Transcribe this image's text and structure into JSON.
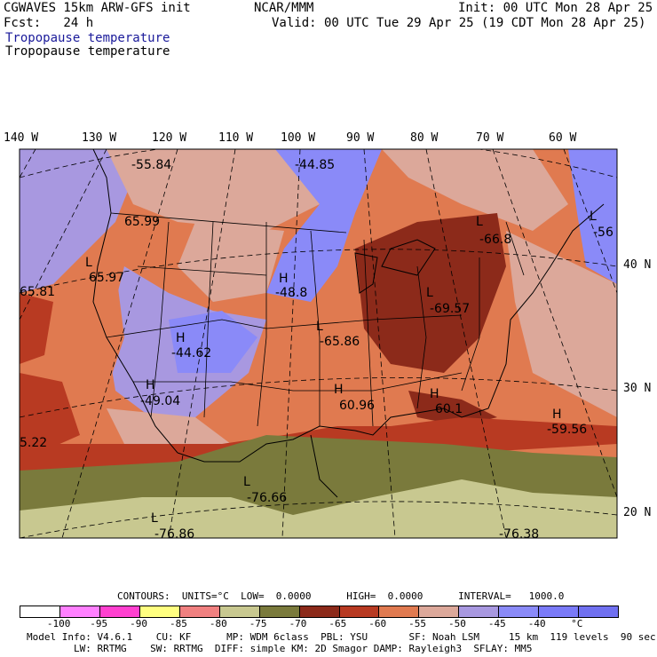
{
  "header": {
    "model": "CGWAVES 15km ARW-GFS init",
    "org": "NCAR/MMM",
    "init": "Init: 00 UTC Mon 28 Apr 25",
    "fcst": "Fcst:   24 h",
    "valid": "Valid: 00 UTC Tue 29 Apr 25 (19 CDT Mon 28 Apr 25)",
    "field_title_1": "Tropopause temperature",
    "field_title_2": "Tropopause temperature"
  },
  "lon_labels": [
    "140 W",
    "130 W",
    "120 W",
    "110 W",
    "100 W",
    "90 W",
    "80 W",
    "70 W",
    "60 W"
  ],
  "lat_labels": [
    "40 N",
    "30 N",
    "20 N"
  ],
  "map_labels": {
    "v1": "-55.84",
    "v2": "-44.85",
    "v3": "65.99",
    "v4": "-66.8",
    "v5": "-56",
    "v6": "65.97",
    "v7": "65.81",
    "v8": "-48.8",
    "v9": "-69.57",
    "v10": "-44.62",
    "v11": "-65.86",
    "v12": "-49.04",
    "v13": "60.96",
    "v14": "60.1",
    "v15": "-59.56",
    "v16": "5.22",
    "v17": "-76.66",
    "v18": "-76.86",
    "v19": "-76.38",
    "H": "H",
    "L": "L"
  },
  "contours": {
    "text": "CONTOURS:  UNITS=°C  LOW=  0.0000      HIGH=  0.0000      INTERVAL=   1000.0"
  },
  "colorbar": {
    "colors": [
      "#ffffff",
      "#ff80ff",
      "#ff40d0",
      "#ffff80",
      "#f08080",
      "#c8c890",
      "#7a7a3c",
      "#8c2a1a",
      "#b83a22",
      "#e07a50",
      "#dca89a",
      "#a898e0",
      "#8a8af8",
      "#7a7af8",
      "#7070f0"
    ],
    "labels": [
      "-100",
      "-95",
      "-90",
      "-85",
      "-80",
      "-75",
      "-70",
      "-65",
      "-60",
      "-55",
      "-50",
      "-45",
      "-40",
      "°C"
    ]
  },
  "footer": {
    "line1": "Model Info: V4.6.1    CU: KF      MP: WDM 6class  PBL: YSU       SF: Noah LSM     15 km  119 levels  90 sec",
    "line2": "        LW: RRTMG    SW: RRTMG  DIFF: simple KM: 2D Smagor DAMP: Rayleigh3  SFLAY: MM5"
  }
}
